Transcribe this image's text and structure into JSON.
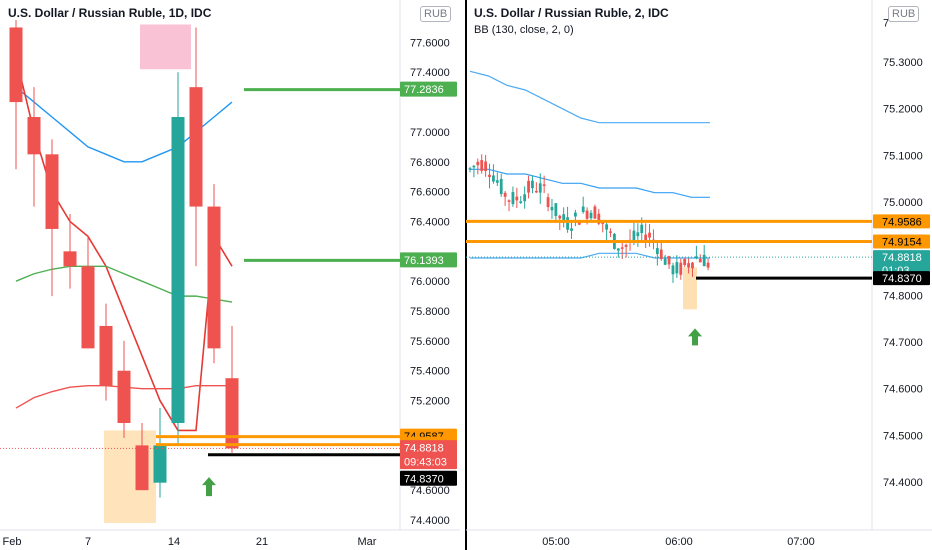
{
  "left_panel": {
    "title": "U.S. Dollar / Russian Ruble, 1D, IDC",
    "currency_badge": "RUB",
    "price_ticks": [
      "77.6000",
      "77.4000",
      "77.0000",
      "76.8000",
      "76.6000",
      "76.4000",
      "76.0000",
      "75.8000",
      "75.6000",
      "75.4000",
      "75.2000",
      "74.6000",
      "74.4000"
    ],
    "time_ticks": [
      "Feb",
      "7",
      "14",
      "21",
      "Mar"
    ],
    "price_labels": [
      {
        "text": "77.2836",
        "color": "#4caf50",
        "text_color": "#ffffff"
      },
      {
        "text": "76.1393",
        "color": "#4caf50",
        "text_color": "#ffffff"
      },
      {
        "text": "74.9587",
        "color": "#ff9800",
        "text_color": "#000000"
      },
      {
        "text": "74.9047",
        "color": "#ff9800",
        "text_color": "#000000"
      },
      {
        "text": "74.8818",
        "color": "#ef5350",
        "text_color": "#ffffff"
      },
      {
        "text": "09:43:03",
        "color": "#ef5350",
        "text_color": "#ffffff"
      },
      {
        "text": "74.8370",
        "color": "#000000",
        "text_color": "#ffffff"
      }
    ]
  },
  "right_panel": {
    "title": "U.S. Dollar / Russian Ruble, 2, IDC",
    "indicator": "BB (130, close, 2, 0)",
    "currency_badge": "RUB",
    "price_ticks": [
      "75.3000",
      "75.2000",
      "75.1000",
      "75.0000",
      "74.8000",
      "74.7000",
      "74.6000",
      "74.5000",
      "74.4000"
    ],
    "time_ticks": [
      "05:00",
      "06:00",
      "07:00"
    ],
    "price_labels": [
      {
        "text": "74.9586",
        "color": "#ff9800",
        "text_color": "#000000"
      },
      {
        "text": "74.9154",
        "color": "#ff9800",
        "text_color": "#000000"
      },
      {
        "text": "74.8818",
        "color": "#26a69a",
        "text_color": "#ffffff"
      },
      {
        "text": "01:03",
        "color": "#26a69a",
        "text_color": "#ffffff"
      },
      {
        "text": "74.8370",
        "color": "#000000",
        "text_color": "#ffffff"
      }
    ]
  },
  "chart_data": [
    {
      "type": "candlestick",
      "title": "U.S. Dollar / Russian Ruble, 1D, IDC",
      "currency": "RUB",
      "ylim": [
        74.3,
        77.75
      ],
      "x_ticks": [
        "Feb",
        "7",
        "14",
        "21",
        "Mar"
      ],
      "candles": [
        {
          "o": 77.7,
          "h": 77.75,
          "l": 76.75,
          "c": 77.2
        },
        {
          "o": 77.1,
          "h": 77.3,
          "l": 76.5,
          "c": 76.85
        },
        {
          "o": 76.85,
          "h": 76.95,
          "l": 75.9,
          "c": 76.35
        },
        {
          "o": 76.2,
          "h": 76.45,
          "l": 75.95,
          "c": 76.1
        },
        {
          "o": 76.1,
          "h": 76.3,
          "l": 75.55,
          "c": 75.55
        },
        {
          "o": 75.7,
          "h": 75.85,
          "l": 75.2,
          "c": 75.3
        },
        {
          "o": 75.4,
          "h": 75.6,
          "l": 74.95,
          "c": 75.05
        },
        {
          "o": 74.9,
          "h": 75.05,
          "l": 74.6,
          "c": 74.6
        },
        {
          "o": 74.65,
          "h": 75.15,
          "l": 74.55,
          "c": 74.9
        },
        {
          "o": 75.05,
          "h": 77.4,
          "l": 74.9,
          "c": 77.1
        },
        {
          "o": 77.3,
          "h": 77.7,
          "l": 76.1,
          "c": 76.5
        },
        {
          "o": 76.5,
          "h": 76.65,
          "l": 75.45,
          "c": 75.55
        },
        {
          "o": 75.35,
          "h": 75.7,
          "l": 74.85,
          "c": 74.88
        }
      ],
      "horizontal_levels": [
        77.2836,
        76.1393,
        74.9587,
        74.9047,
        74.837
      ],
      "annotation": "green up arrow",
      "overlay_lines": [
        {
          "color": "#2196f3",
          "desc": "upper band",
          "points": [
            77.3,
            77.2,
            77.1,
            77.0,
            76.9,
            76.85,
            76.8,
            76.8,
            76.85,
            76.9,
            77.0,
            77.1,
            77.2
          ]
        },
        {
          "color": "#e53935",
          "desc": "moving average",
          "points": [
            77.5,
            77.0,
            76.6,
            76.4,
            76.3,
            76.1,
            75.8,
            75.5,
            75.2,
            75.0,
            75.0,
            76.3,
            76.1
          ]
        },
        {
          "color": "#4caf50",
          "desc": "middle band",
          "points": [
            76.0,
            76.05,
            76.08,
            76.1,
            76.1,
            76.1,
            76.05,
            76.0,
            75.95,
            75.9,
            75.9,
            75.88,
            75.86
          ]
        },
        {
          "color": "#ef5350",
          "desc": "lower band",
          "points": [
            75.15,
            75.22,
            75.26,
            75.29,
            75.3,
            75.3,
            75.29,
            75.28,
            75.28,
            75.28,
            75.3,
            75.3,
            75.3
          ]
        }
      ]
    },
    {
      "type": "candlestick",
      "title": "U.S. Dollar / Russian Ruble, 2, IDC",
      "currency": "RUB",
      "indicator": "BB (130, close, 2, 0)",
      "ylim": [
        74.35,
        75.38
      ],
      "x_ticks": [
        "05:00",
        "06:00",
        "07:00"
      ],
      "horizontal_levels": [
        74.9586,
        74.9154,
        74.837
      ],
      "annotation": "green up arrow",
      "bands": {
        "upper": [
          75.28,
          75.27,
          75.25,
          75.24,
          75.22,
          75.2,
          75.18,
          75.17,
          75.17,
          75.17,
          75.17,
          75.17,
          75.17,
          75.17
        ],
        "middle": [
          75.07,
          75.07,
          75.06,
          75.06,
          75.05,
          75.04,
          75.04,
          75.03,
          75.03,
          75.03,
          75.02,
          75.02,
          75.01,
          75.01
        ],
        "lower": [
          74.88,
          74.88,
          74.88,
          74.88,
          74.88,
          74.88,
          74.88,
          74.89,
          74.89,
          74.89,
          74.88,
          74.88,
          74.88,
          74.88
        ]
      }
    }
  ]
}
